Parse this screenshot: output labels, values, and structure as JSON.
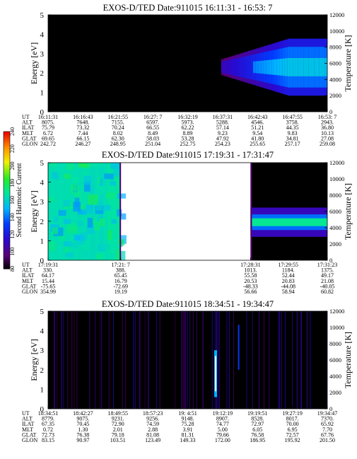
{
  "chart_data": [
    {
      "type": "heatmap",
      "title": "EXOS-D/TED   Date:911015  16:11:31 - 16:53: 7",
      "ylabel": "Energy [eV]",
      "ylabel_right": "Temperature [K]",
      "ylim": [
        0,
        5
      ],
      "ylim_right": [
        0,
        12000
      ],
      "yticks": [
        "0",
        "1",
        "2",
        "3",
        "4",
        "5"
      ],
      "yticks_right": [
        "0",
        "2000",
        "4000",
        "6000",
        "8000",
        "10000",
        "12000"
      ],
      "row_labels": [
        "UT",
        "ALT",
        "ILAT",
        "MLT",
        "GLAT",
        "GLON"
      ],
      "columns": [
        [
          "16:11:31",
          "8075.",
          "75.79",
          "6.72",
          "69.65",
          "242.72"
        ],
        [
          "16:16:43",
          "7648.",
          "73.32",
          "7.44",
          "66.15",
          "246.27"
        ],
        [
          "16:21:55",
          "7155.",
          "70.24",
          "8.02",
          "62.30",
          "248.95"
        ],
        [
          "16:27: 7",
          "6597.",
          "66.55",
          "8.49",
          "58.03",
          "251.04"
        ],
        [
          "16:32:19",
          "5973.",
          "62.22",
          "8.89",
          "53.28",
          "252.75"
        ],
        [
          "16:37:31",
          "5288.",
          "57.14",
          "9.23",
          "47.92",
          "254.23"
        ],
        [
          "16:42:43",
          "4546.",
          "51.21",
          "9.54",
          "41.80",
          "255.65"
        ],
        [
          "16:47:55",
          "3758.",
          "44.35",
          "9.83",
          "34.81",
          "257.17"
        ],
        [
          "16:53: 7",
          "2943.",
          "36.80",
          "10.13",
          "27.08",
          "259.08"
        ]
      ],
      "data_regions": [
        {
          "t_from": 0.0,
          "t_to": 1.0,
          "e_from": 0.0,
          "e_to": 5.0,
          "level": 70
        }
      ],
      "feature": {
        "t_start": 0.62,
        "e_center": 2.3,
        "e_halfwidth": 0.75,
        "level_core": 155
      }
    },
    {
      "type": "heatmap",
      "title": "EXOS-D/TED   Date:911015  17:19:31 - 17:31:47",
      "ylabel": "Energy [eV]",
      "ylabel_right": "Temperature [K]",
      "ylim": [
        0,
        5
      ],
      "ylim_right": [
        0,
        12000
      ],
      "yticks": [
        "0",
        "1",
        "2",
        "3",
        "4",
        "5"
      ],
      "yticks_right": [
        "0",
        "2000",
        "4000",
        "6000",
        "8000",
        "10000",
        "12000"
      ],
      "row_labels": [
        "UT",
        "ALT",
        "ILAT",
        "MLT",
        "GLAT",
        "GLON"
      ],
      "columns": [
        [
          "17:19:31",
          "330.",
          "64.17",
          "15.44",
          "-75.65",
          "354.99"
        ],
        [
          "17:21: 7",
          "388.",
          "65.45",
          "16.79",
          "-72.69",
          "19.19"
        ],
        [
          "17:28:31",
          "1013.",
          "55.58",
          "20.53",
          "-48.33",
          "56.66"
        ],
        [
          "17:29:55",
          "1184.",
          "52.44",
          "20.83",
          "-44.08",
          "58.94"
        ],
        [
          "17:31:23",
          "1375.",
          "49.17",
          "21.08",
          "-40.05",
          "60.82"
        ]
      ],
      "col_positions": [
        0.0,
        0.26,
        0.725,
        0.86,
        1.0
      ],
      "data_regions": [
        {
          "t_from": 0.0,
          "t_to": 0.26,
          "e_from": 0.0,
          "e_to": 5.0,
          "level": 165
        },
        {
          "t_from": 0.725,
          "t_to": 1.0,
          "e_from": 0.0,
          "e_to": 5.0,
          "level": 70
        }
      ]
    },
    {
      "type": "heatmap",
      "title": "EXOS-D/TED   Date:911015  18:34:51 - 19:34:47",
      "ylabel": "Energy [eV]",
      "ylabel_right": "Temperature [K]",
      "ylim": [
        0,
        5
      ],
      "ylim_right": [
        0,
        12000
      ],
      "yticks": [
        "0",
        "1",
        "2",
        "3",
        "4",
        "5"
      ],
      "yticks_right": [
        "0",
        "2000",
        "4000",
        "6000",
        "8000",
        "10000",
        "12000"
      ],
      "row_labels": [
        "UT",
        "ALT",
        "ILAT",
        "MLT",
        "GLAT",
        "GLON"
      ],
      "columns": [
        [
          "18:34:51",
          "8779.",
          "67.35",
          "0.72",
          "72.73",
          "83.15"
        ],
        [
          "18:42:27",
          "9075.",
          "70.45",
          "1.30",
          "76.38",
          "90.97"
        ],
        [
          "18:49:55",
          "9231.",
          "72.90",
          "2.01",
          "79.18",
          "103.51"
        ],
        [
          "18:57:23",
          "9256.",
          "74.59",
          "2.88",
          "81.08",
          "123.49"
        ],
        [
          "19: 4:51",
          "9148.",
          "75.28",
          "3.91",
          "81.31",
          "149.33"
        ],
        [
          "19:12:19",
          "8907.",
          "74.77",
          "5.00",
          "79.66",
          "172.00"
        ],
        [
          "19:19:51",
          "8528.",
          "72.97",
          "6.05",
          "76.58",
          "186.95"
        ],
        [
          "19:27:19",
          "8017.",
          "70.00",
          "6.95",
          "72.57",
          "195.92"
        ],
        [
          "19:34:47",
          "7370.",
          "65.92",
          "7.70",
          "67.76",
          "201.50"
        ]
      ],
      "data_regions": [
        {
          "t_from": 0.0,
          "t_to": 1.0,
          "e_from": 0.0,
          "e_to": 5.0,
          "level": 70
        }
      ]
    }
  ],
  "colorbar": {
    "label": "Second Harmonic Current",
    "ticks": [
      "80",
      "100",
      "120",
      "140",
      "160",
      "180",
      "200",
      "220",
      "240"
    ],
    "vmin": 80,
    "vmax": 240
  }
}
